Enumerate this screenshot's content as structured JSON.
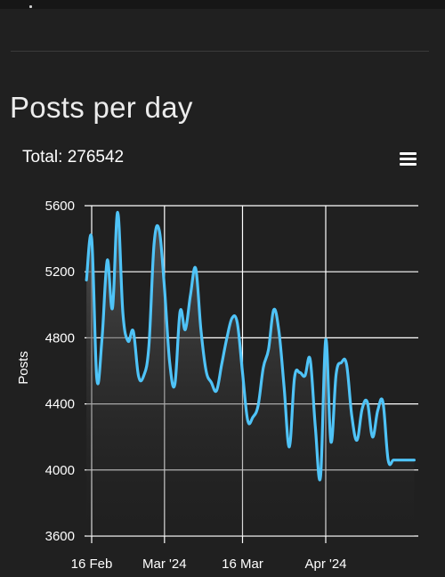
{
  "page": {
    "title": "Posts per day"
  },
  "chart_header": {
    "total_label": "Total: 276542",
    "menu_icon": "hamburger-menu-icon"
  },
  "colors": {
    "background": "#202020",
    "line": "#4fc3f7",
    "grid": "#ffffff",
    "text": "#ffffff"
  },
  "chart_data": {
    "type": "area",
    "xlabel": "",
    "ylabel": "Posts",
    "ylim": [
      3600,
      5600
    ],
    "yticks": [
      3600,
      4000,
      4400,
      4800,
      5200,
      5600
    ],
    "xlim": [
      "2024-02-16",
      "2024-04-18"
    ],
    "xticks": [
      {
        "date": "2024-02-16",
        "label": "16 Feb"
      },
      {
        "date": "2024-03-01",
        "label": "Mar '24"
      },
      {
        "date": "2024-03-16",
        "label": "16 Mar"
      },
      {
        "date": "2024-04-01",
        "label": "Apr '24"
      }
    ],
    "grid": true,
    "series": [
      {
        "x": [
          "2024-02-15",
          "2024-02-16",
          "2024-02-17",
          "2024-02-18",
          "2024-02-19",
          "2024-02-20",
          "2024-02-21",
          "2024-02-22",
          "2024-02-23",
          "2024-02-24",
          "2024-02-25",
          "2024-02-26",
          "2024-02-27",
          "2024-02-28",
          "2024-02-29",
          "2024-03-01",
          "2024-03-02",
          "2024-03-03",
          "2024-03-04",
          "2024-03-05",
          "2024-03-06",
          "2024-03-07",
          "2024-03-08",
          "2024-03-09",
          "2024-03-10",
          "2024-03-11",
          "2024-03-12",
          "2024-03-13",
          "2024-03-14",
          "2024-03-15",
          "2024-03-16",
          "2024-03-17",
          "2024-03-18",
          "2024-03-19",
          "2024-03-20",
          "2024-03-21",
          "2024-03-22",
          "2024-03-23",
          "2024-03-24",
          "2024-03-25",
          "2024-03-26",
          "2024-03-27",
          "2024-03-28",
          "2024-03-29",
          "2024-03-30",
          "2024-03-31",
          "2024-04-01",
          "2024-04-02",
          "2024-04-03",
          "2024-04-04",
          "2024-04-05",
          "2024-04-06",
          "2024-04-07",
          "2024-04-08",
          "2024-04-09",
          "2024-04-10",
          "2024-04-11",
          "2024-04-12",
          "2024-04-13",
          "2024-04-14",
          "2024-04-15",
          "2024-04-16",
          "2024-04-17",
          "2024-04-18"
        ],
        "values": [
          5150,
          5400,
          4550,
          4800,
          5270,
          4980,
          5560,
          4950,
          4780,
          4840,
          4570,
          4570,
          4750,
          5370,
          5450,
          5100,
          4650,
          4520,
          4960,
          4850,
          5060,
          5220,
          4850,
          4600,
          4530,
          4480,
          4640,
          4800,
          4920,
          4890,
          4590,
          4300,
          4320,
          4390,
          4620,
          4730,
          4970,
          4840,
          4500,
          4140,
          4560,
          4590,
          4570,
          4670,
          4260,
          3960,
          4790,
          4170,
          4580,
          4650,
          4640,
          4330,
          4180,
          4370,
          4410,
          4200,
          4360,
          4410,
          4060,
          4060,
          4060,
          4060,
          4060,
          4060
        ]
      }
    ]
  }
}
